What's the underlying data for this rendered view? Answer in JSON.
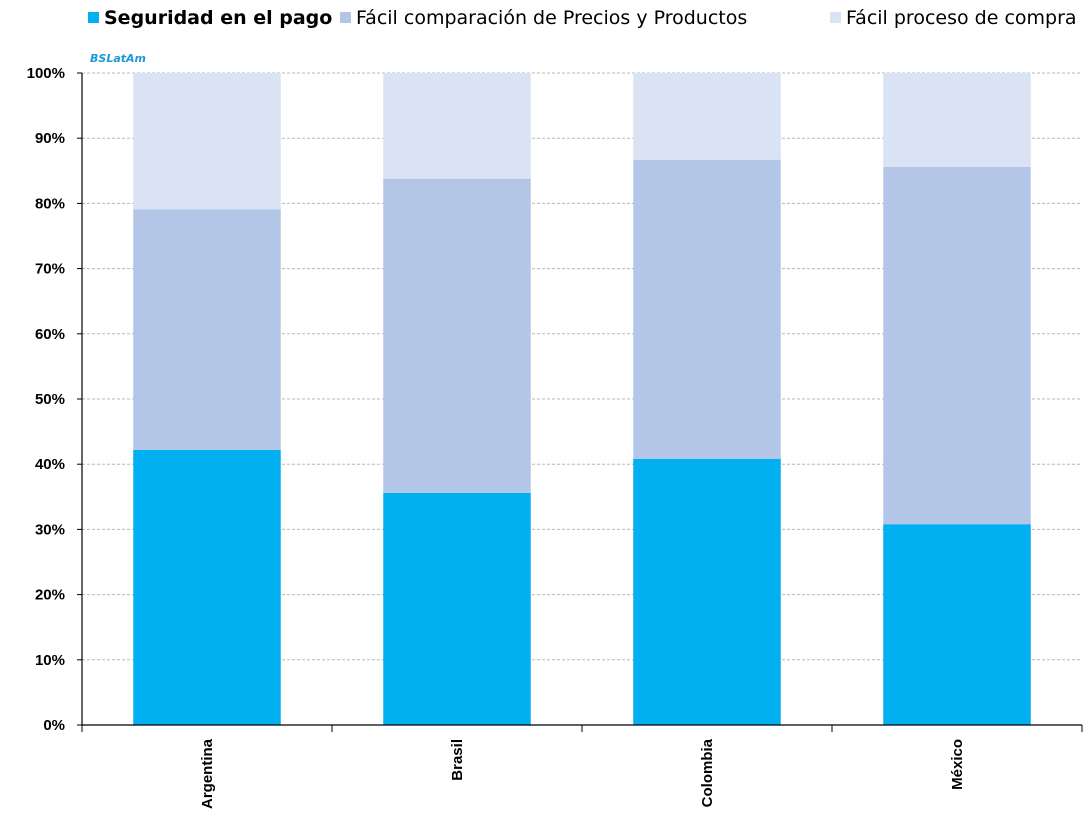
{
  "watermark": {
    "brand_strong": "BS",
    "brand_rest": "LatAm",
    "color": "#1a9ad6"
  },
  "chart_data": {
    "type": "bar",
    "stacked": true,
    "normalized": true,
    "categories": [
      "Argentina",
      "Brasil",
      "Colombia",
      "México"
    ],
    "series": [
      {
        "name": "Seguridad en el pago",
        "color": "#00b0f0",
        "values": [
          42.2,
          35.6,
          40.8,
          30.8
        ]
      },
      {
        "name": "Fácil comparación de Precios y Productos",
        "color": "#b4c6e7",
        "values": [
          36.9,
          48.2,
          45.9,
          54.8
        ]
      },
      {
        "name": "Fácil proceso de compra",
        "color": "#dae3f3",
        "values": [
          20.9,
          16.2,
          13.3,
          14.4
        ]
      }
    ],
    "ylim": [
      0,
      100
    ],
    "yticks": [
      "0%",
      "10%",
      "20%",
      "30%",
      "40%",
      "50%",
      "60%",
      "70%",
      "80%",
      "90%",
      "100%"
    ],
    "grid": true,
    "legend": "top",
    "title": "",
    "xlabel": "",
    "ylabel": ""
  }
}
